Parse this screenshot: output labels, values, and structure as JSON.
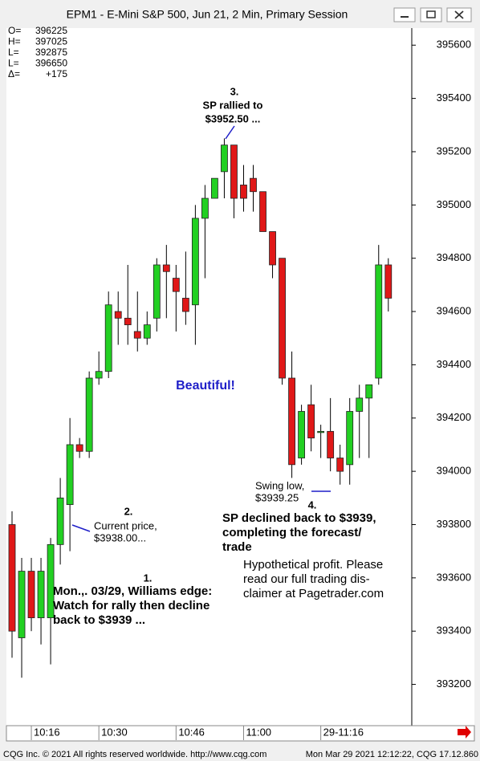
{
  "chart_data": {
    "type": "candlestick",
    "title": "EPM1 - E-Mini S&P 500, Jun 21, 2 Min, Primary Session",
    "info": [
      {
        "label": "O=",
        "value": 396225
      },
      {
        "label": "H=",
        "value": 397025
      },
      {
        "label": "L=",
        "value": 392875
      },
      {
        "label": "L=",
        "value": 396650
      },
      {
        "label": "Δ=",
        "value": "+175"
      }
    ],
    "up_color": "#22d022",
    "down_color": "#e01818",
    "open": [
      393800,
      393375,
      393625,
      393450,
      393450,
      393725,
      393875,
      394100,
      394075,
      394350,
      394375,
      394600,
      394575,
      394525,
      394500,
      394575,
      394775,
      394725,
      394650,
      394625,
      394950,
      395025,
      395125,
      395225,
      395075,
      395100,
      395050,
      394900,
      394800,
      394350,
      394050,
      394250,
      394150,
      394150,
      394050,
      394025,
      394225,
      394275,
      394350,
      394775
    ],
    "high": [
      393850,
      393675,
      393675,
      393675,
      393750,
      393975,
      394200,
      394125,
      394375,
      394450,
      394675,
      394675,
      394775,
      394675,
      394600,
      394800,
      394850,
      394775,
      394825,
      395000,
      395075,
      395100,
      395250,
      395225,
      395150,
      395150,
      395050,
      394900,
      394800,
      394450,
      394250,
      394325,
      394175,
      394275,
      394100,
      394275,
      394325,
      394325,
      394850,
      394800
    ],
    "low": [
      393300,
      393225,
      393400,
      393350,
      393275,
      393650,
      393700,
      394050,
      394050,
      394325,
      394350,
      394475,
      394475,
      394450,
      394475,
      394525,
      394575,
      394525,
      394550,
      394475,
      394725,
      395025,
      395025,
      394950,
      394975,
      394975,
      394900,
      394725,
      394325,
      393975,
      394025,
      394075,
      394050,
      394000,
      393950,
      393950,
      394050,
      394050,
      394325,
      394600
    ],
    "close": [
      393400,
      393625,
      393450,
      393625,
      393725,
      393900,
      394100,
      394075,
      394350,
      394375,
      394625,
      394575,
      394550,
      394500,
      394550,
      394775,
      394750,
      394675,
      394600,
      394950,
      395025,
      395100,
      395225,
      395025,
      395025,
      395050,
      394900,
      394775,
      394350,
      394025,
      394225,
      394125,
      394150,
      394050,
      394000,
      394225,
      394275,
      394325,
      394775,
      394650
    ],
    "ylim": [
      393045,
      395655
    ],
    "yticks": [
      395600,
      395400,
      395200,
      395000,
      394800,
      394600,
      394400,
      394200,
      394000,
      393800,
      393600,
      393400,
      393200
    ],
    "xticks": [
      {
        "value": 2,
        "label": "10:16"
      },
      {
        "value": 9,
        "label": "10:30"
      },
      {
        "value": 17,
        "label": "10:46"
      },
      {
        "value": 24,
        "label": "11:00"
      },
      {
        "value": 32,
        "label": "29-11:16"
      }
    ],
    "annotations": [
      "3.",
      "SP rallied to",
      "$3952.50 ...",
      "Beautiful!",
      "2.",
      "Current price,",
      "$3938.00...",
      "1.",
      "Mon.,. 03/29, Williams edge:",
      "Watch for rally then decline",
      "back to $3939 ...",
      "Swing low,",
      "$3939.25",
      "4.",
      "SP declined back to $3939,",
      "completing the forecast/",
      "trade",
      "Hypothetical profit. Please",
      "read our full trading dis-",
      "claimer at Pagetrader.com"
    ]
  },
  "status": {
    "left": "CQG Inc. © 2021 All rights reserved worldwide. http://www.cqg.com",
    "right": "Mon Mar 29 2021 12:12:22, CQG 17.12.860"
  }
}
